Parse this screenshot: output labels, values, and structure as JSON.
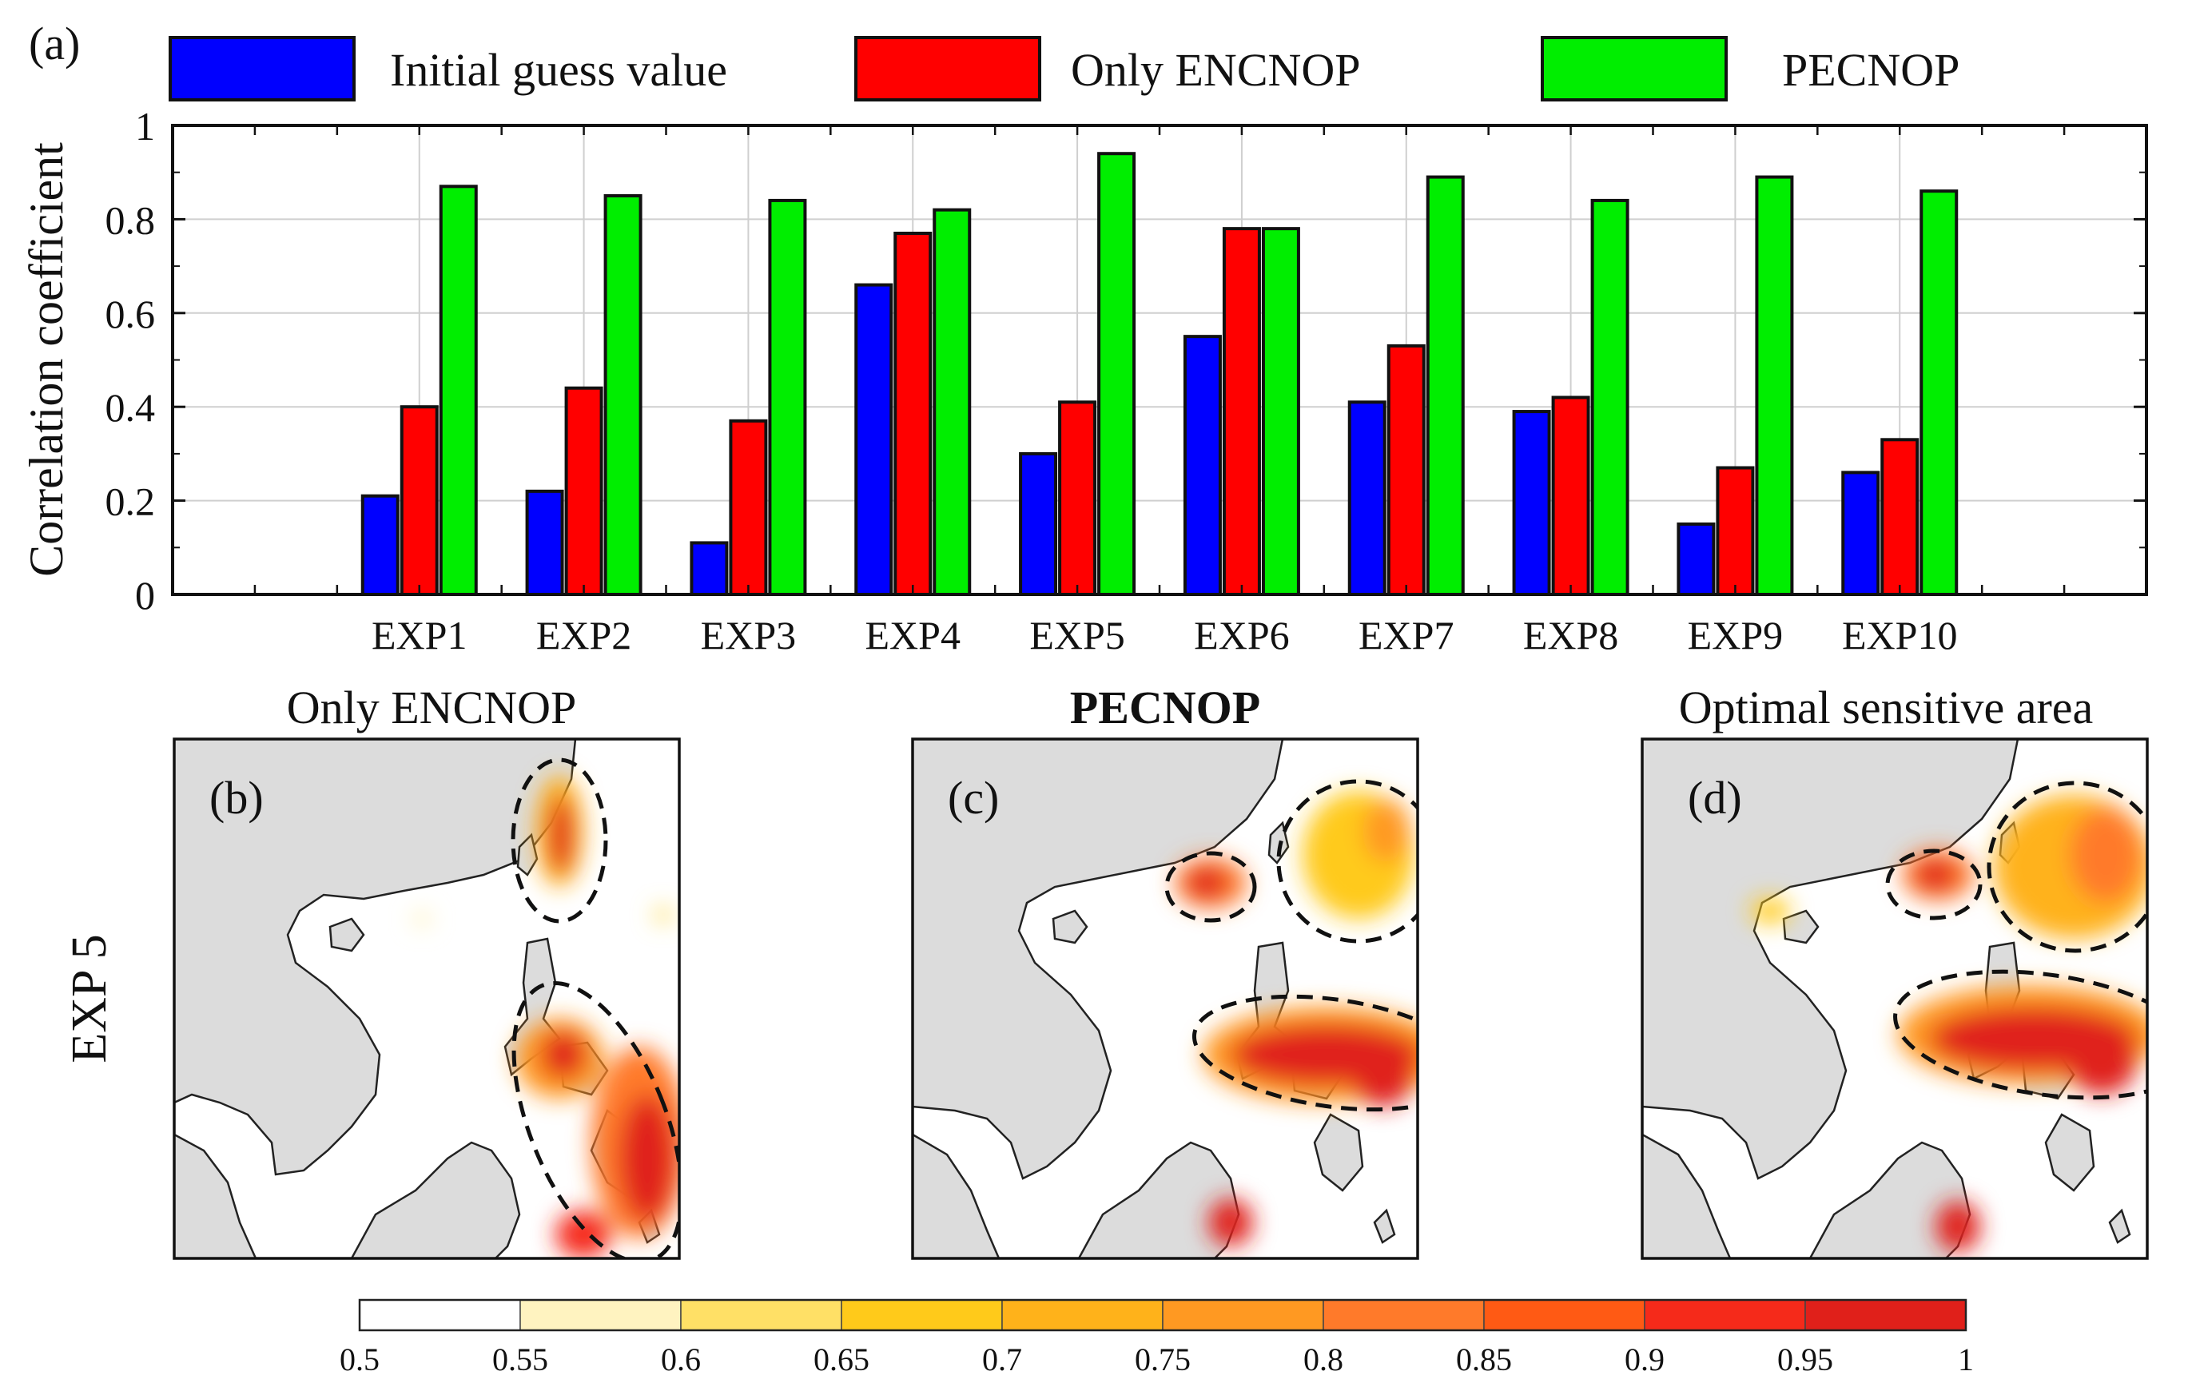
{
  "panel_a": {
    "label": "(a)",
    "chart_data": {
      "type": "bar",
      "title": "",
      "xlabel": "",
      "ylabel": "Correlation coefficient",
      "ylim": [
        0,
        1
      ],
      "yticks": [
        "0",
        "0.2",
        "0.4",
        "0.6",
        "0.8",
        "1"
      ],
      "grid": true,
      "categories": [
        "EXP1",
        "EXP2",
        "EXP3",
        "EXP4",
        "EXP5",
        "EXP6",
        "EXP7",
        "EXP8",
        "EXP9",
        "EXP10"
      ],
      "series": [
        {
          "name": "Initial guess value",
          "color": "#0000ff",
          "values": [
            0.21,
            0.22,
            0.11,
            0.66,
            0.3,
            0.55,
            0.41,
            0.39,
            0.15,
            0.26
          ]
        },
        {
          "name": "Only ENCNOP",
          "color": "#ff0000",
          "values": [
            0.4,
            0.44,
            0.37,
            0.77,
            0.41,
            0.78,
            0.53,
            0.42,
            0.27,
            0.33
          ]
        },
        {
          "name": "PECNOP",
          "color": "#00ee00",
          "values": [
            0.87,
            0.85,
            0.84,
            0.82,
            0.94,
            0.78,
            0.89,
            0.84,
            0.89,
            0.86
          ]
        }
      ],
      "legend_position": "top"
    }
  },
  "maps": {
    "row_label": "EXP 5",
    "panels": [
      {
        "title": "Only ENCNOP",
        "label": "(b)",
        "bold": false
      },
      {
        "title": "PECNOP",
        "label": "(c)",
        "bold": true
      },
      {
        "title": "Optimal sensitive area",
        "label": "(d)",
        "bold": false
      }
    ]
  },
  "colorbar": {
    "ticks": [
      "0.5",
      "0.55",
      "0.6",
      "0.65",
      "0.7",
      "0.75",
      "0.8",
      "0.85",
      "0.9",
      "0.95",
      "1"
    ],
    "colors": [
      "#ffffff",
      "#fff3c0",
      "#ffe066",
      "#ffca1a",
      "#ffb21a",
      "#ff9922",
      "#ff7a2a",
      "#ff5a14",
      "#f52a1a",
      "#e0201a"
    ]
  }
}
